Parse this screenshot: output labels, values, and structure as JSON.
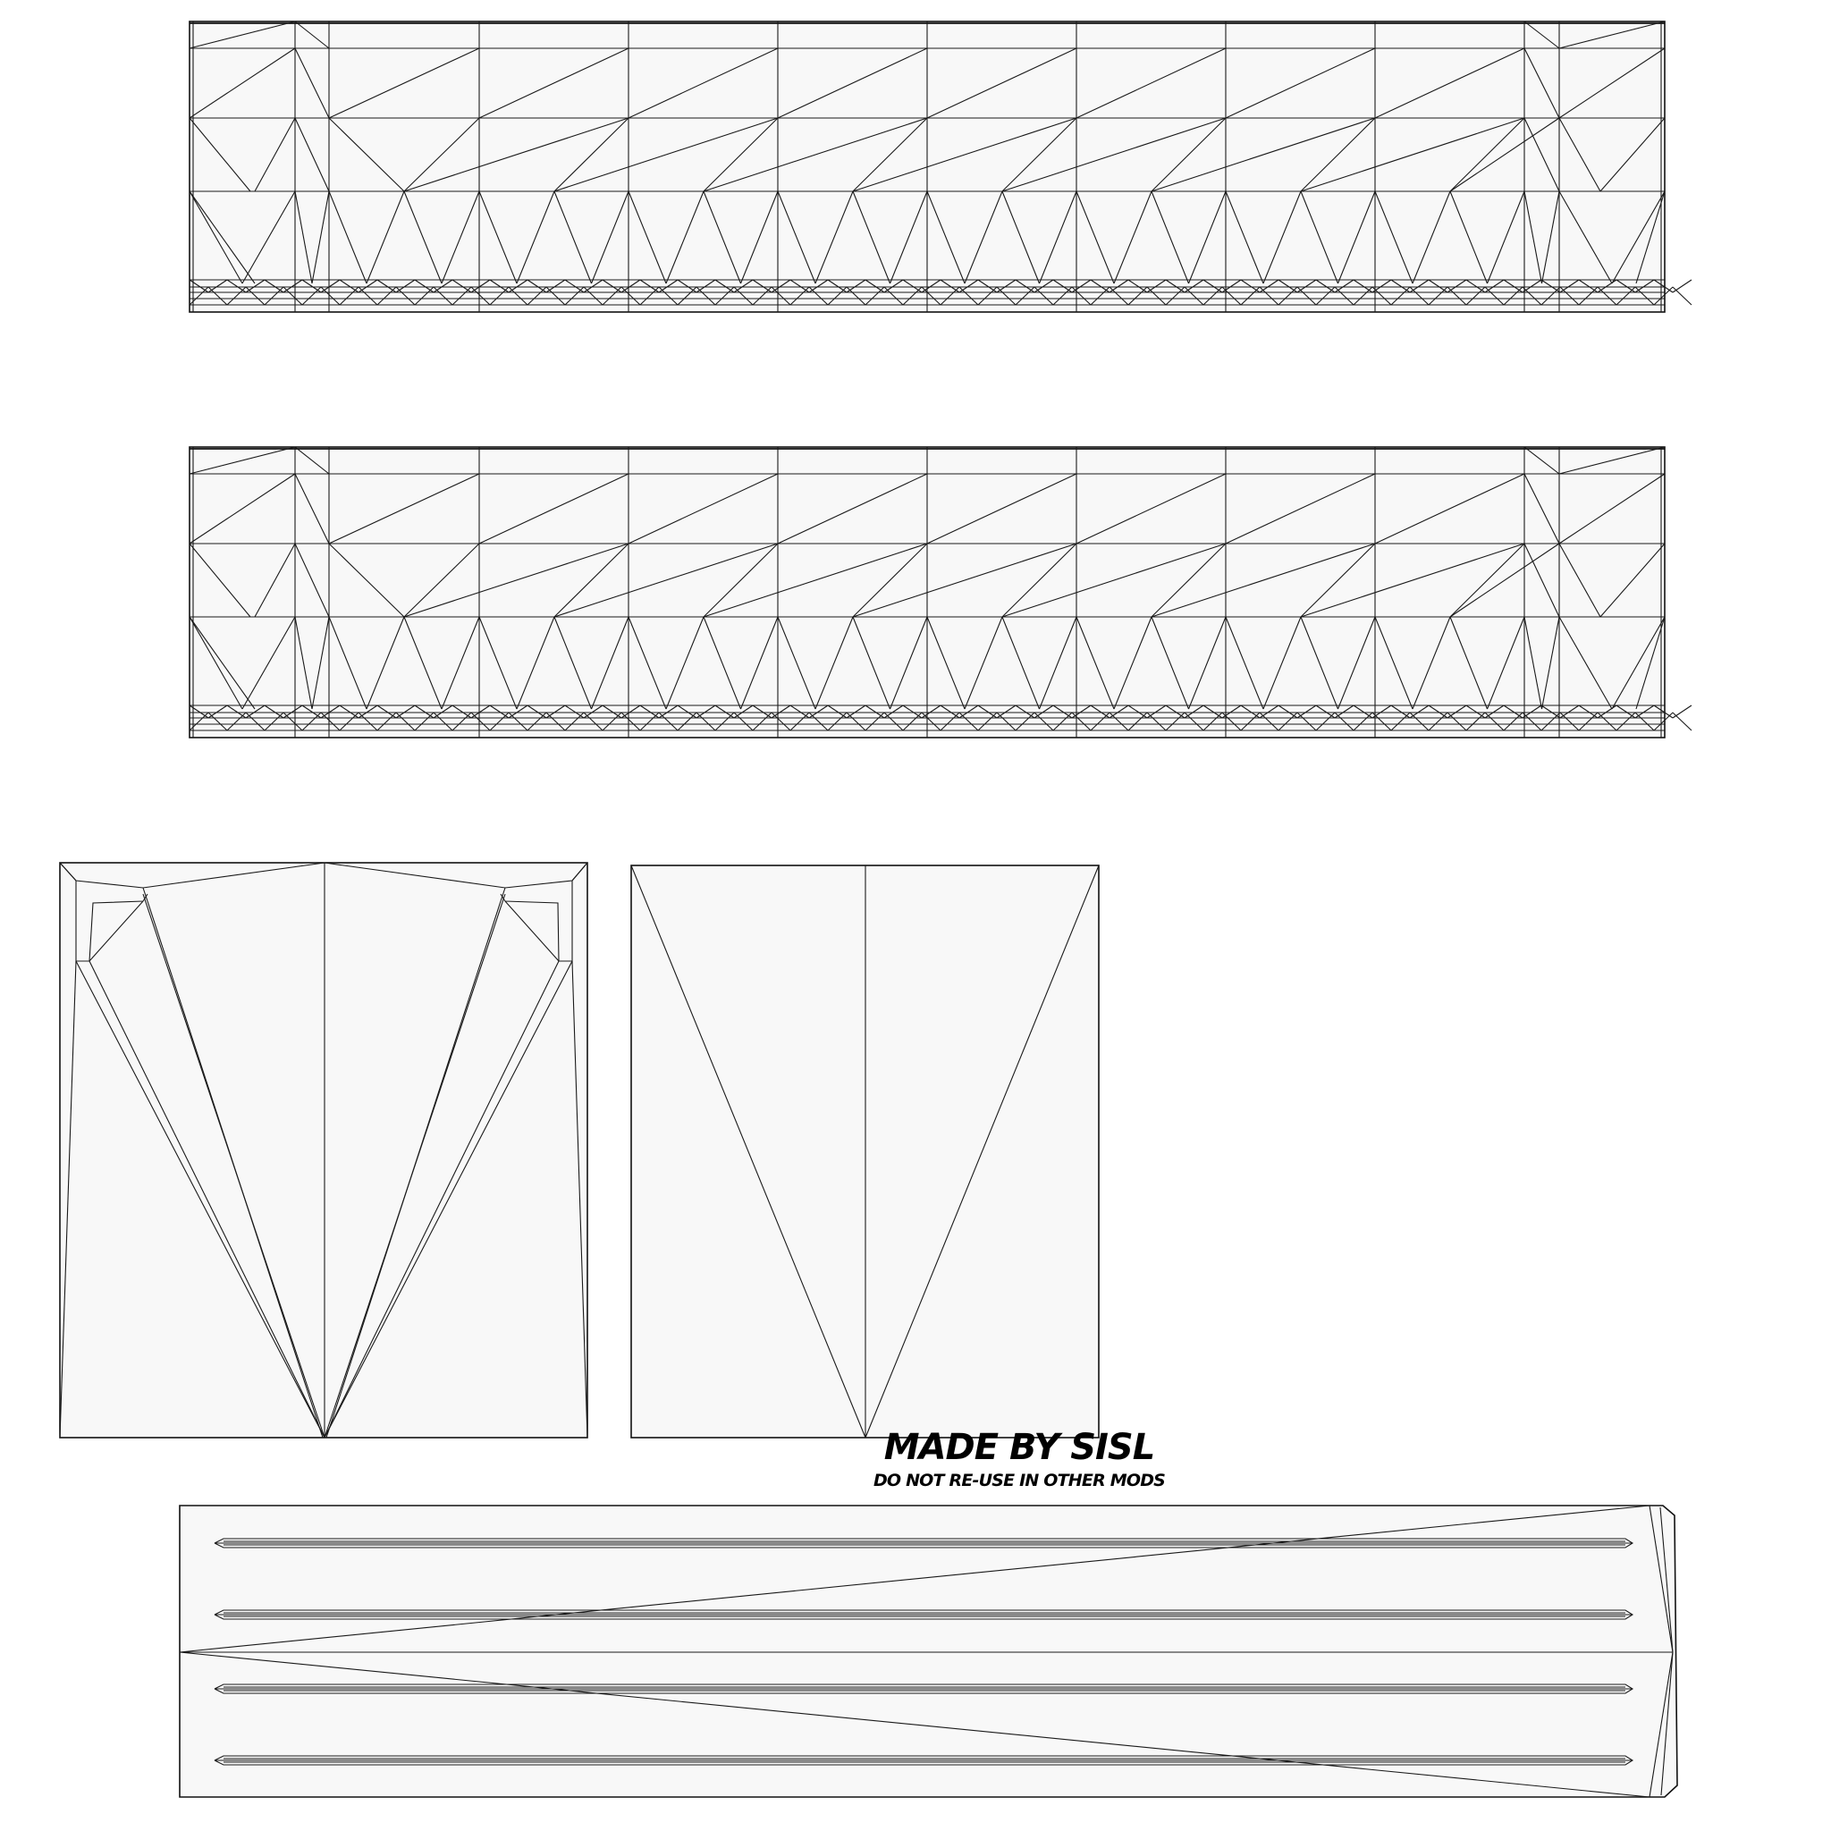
{
  "credit": {
    "title": "MADE BY SISL",
    "subtitle": "DO NOT RE-USE IN OTHER MODS"
  },
  "colors": {
    "background": "#ffffff",
    "island_fill": "#f8f8f8",
    "wire": "#111111"
  },
  "islands": [
    {
      "id": "strip-top",
      "kind": "triangulated strip"
    },
    {
      "id": "strip-middle",
      "kind": "triangulated strip"
    },
    {
      "id": "panel-left",
      "kind": "tapered panel"
    },
    {
      "id": "panel-right",
      "kind": "split panel"
    },
    {
      "id": "base-bar",
      "kind": "grooved plank"
    }
  ]
}
